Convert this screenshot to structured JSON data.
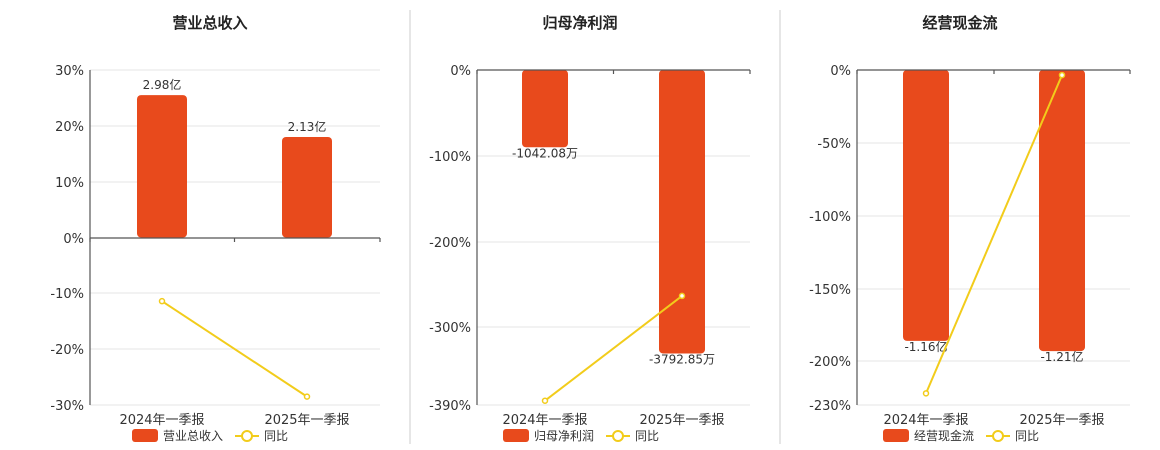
{
  "colors": {
    "bar": "#E84A1C",
    "line": "#F2CC1B",
    "grid": "#e6e6e6",
    "axis": "#555555"
  },
  "chart_data": [
    {
      "type": "bar",
      "title": "营业总收入",
      "categories": [
        "2024年一季报",
        "2025年一季报"
      ],
      "y_ticks": [
        "30%",
        "20%",
        "10%",
        "0%",
        "-10%",
        "-20%",
        "-30%"
      ],
      "ylim": [
        -30,
        30
      ],
      "series": [
        {
          "name": "营业总收入",
          "type": "bar",
          "values": [
            25.5,
            18.0
          ],
          "labels": [
            "2.98亿",
            "2.13亿"
          ]
        },
        {
          "name": "同比",
          "type": "line",
          "values": [
            -11.4,
            -28.5
          ]
        }
      ],
      "legend": [
        "营业总收入",
        "同比"
      ]
    },
    {
      "type": "bar",
      "title": "归母净利润",
      "categories": [
        "2024年一季报",
        "2025年一季报"
      ],
      "y_ticks": [
        "0%",
        "-100%",
        "-200%",
        "-300%",
        "-390%"
      ],
      "ylim": [
        -390,
        0
      ],
      "series": [
        {
          "name": "归母净利润",
          "type": "bar",
          "values": [
            -90,
            -330
          ],
          "labels": [
            "-1042.08万",
            "-3792.85万"
          ]
        },
        {
          "name": "同比",
          "type": "line",
          "values": [
            -385,
            -263
          ]
        }
      ],
      "legend": [
        "归母净利润",
        "同比"
      ]
    },
    {
      "type": "bar",
      "title": "经营现金流",
      "categories": [
        "2024年一季报",
        "2025年一季报"
      ],
      "y_ticks": [
        "0%",
        "-50%",
        "-100%",
        "-150%",
        "-200%",
        "-230%"
      ],
      "ylim": [
        -230,
        0
      ],
      "series": [
        {
          "name": "经营现金流",
          "type": "bar",
          "values": [
            -186,
            -193
          ],
          "labels": [
            "-1.16亿",
            "-1.21亿"
          ]
        },
        {
          "name": "同比",
          "type": "line",
          "values": [
            -222,
            -3.5
          ]
        }
      ],
      "legend": [
        "经营现金流",
        "同比"
      ]
    }
  ]
}
